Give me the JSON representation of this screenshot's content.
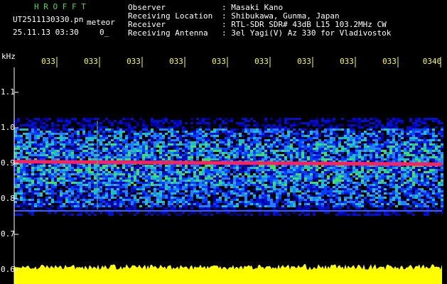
{
  "app": {
    "title": "H R O F F T",
    "filename": "UT2511130330.pn",
    "mode": "meteor",
    "timestamp": "25.11.13 03:30",
    "counter": "0_"
  },
  "info": {
    "rows": [
      [
        "Observer",
        ": Masaki Kano"
      ],
      [
        "Receiving Location",
        ": Shibukawa, Gunma, Japan"
      ],
      [
        "Receiver",
        ": RTL-SDR SDR# 43dB L15 103.2MHz CW"
      ],
      [
        "Receiving Antenna",
        ": 3el Yagi(V) Az 330 for Vladivostok"
      ]
    ]
  },
  "axis": {
    "unit": "kHz",
    "y_labels": [
      "1.1",
      "1.0",
      "0.9",
      "0.8",
      "0.7",
      "0.6"
    ],
    "x_labels": [
      "033",
      "033",
      "033",
      "033",
      "033",
      "033",
      "033",
      "033",
      "033",
      "0340"
    ]
  }
}
